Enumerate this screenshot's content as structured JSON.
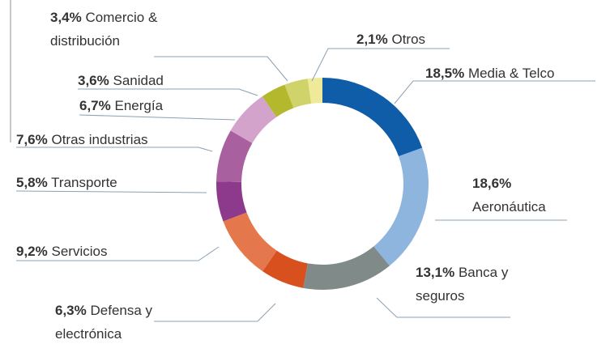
{
  "chart_data": {
    "type": "donut",
    "categories": [
      "Media & Telco",
      "Aeronáutica",
      "Banca y seguros",
      "Defensa y electrónica",
      "Servicios",
      "Transporte",
      "Otras industrias",
      "Energía",
      "Sanidad",
      "Comercio & distribución",
      "Otros"
    ],
    "values": [
      18.5,
      18.6,
      13.1,
      6.3,
      9.2,
      5.8,
      7.6,
      6.7,
      3.6,
      3.4,
      2.1
    ],
    "value_labels": [
      "18,5%",
      "18,6%",
      "13,1%",
      "6,3%",
      "9,2%",
      "5,8%",
      "7,6%",
      "6,7%",
      "3,6%",
      "3,4%",
      "2,1%"
    ],
    "colors": [
      "#0f5ca8",
      "#8db5dd",
      "#7f8a89",
      "#d9501f",
      "#e4784c",
      "#8e3a8c",
      "#a8609f",
      "#d4a3cc",
      "#b4b82c",
      "#cfd36a",
      "#efe99a"
    ]
  }
}
